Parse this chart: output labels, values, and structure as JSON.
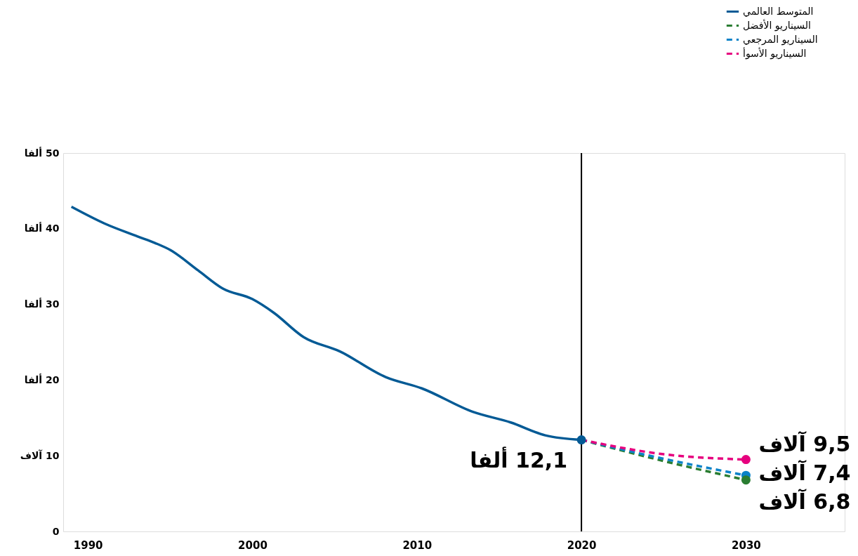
{
  "chart_data": {
    "type": "line",
    "x": [
      1989,
      1991,
      1993,
      1994.1,
      1995,
      1996.7,
      1998.2,
      2000,
      2001.3,
      2003.1,
      2005.3,
      2008.1,
      2010.3,
      2013.4,
      2015.7,
      2017.8,
      2020
    ],
    "series": [
      {
        "name": "المتوسط العالمي",
        "color": "#035a95",
        "line_style": "solid",
        "values": [
          42.9,
          40.7,
          39.0,
          38.1,
          37.2,
          34.5,
          32.1,
          30.7,
          28.9,
          25.7,
          23.8,
          20.4,
          18.9,
          15.8,
          14.4,
          12.7,
          12.1
        ]
      },
      {
        "name": "السيناريو الأفضل",
        "color": "#2a7d32",
        "line_style": "dashed",
        "x": [
          2020,
          2025,
          2030
        ],
        "values": [
          12.1,
          9.3,
          6.8
        ]
      },
      {
        "name": "السيناريو المرجعي",
        "color": "#0a82c8",
        "line_style": "dashed",
        "x": [
          2020,
          2025,
          2030
        ],
        "values": [
          12.1,
          9.6,
          7.4
        ]
      },
      {
        "name": "السيناريو الأسوأ",
        "color": "#e6007e",
        "line_style": "dashed",
        "x": [
          2020,
          2025,
          2030
        ],
        "values": [
          12.1,
          10.2,
          9.5
        ]
      },
      {
        "type": "scatter",
        "marker": "circle",
        "x": [
          2020,
          2030,
          2030,
          2030
        ],
        "values": [
          12.1,
          9.5,
          7.4,
          6.8
        ],
        "colors": [
          "#035a95",
          "#e6007e",
          "#0a82c8",
          "#2a7d32"
        ],
        "value_labels": [
          "12,1 ألفا",
          "9,5 آلاف",
          "7,4 آلاف",
          "6,8 آلاف"
        ]
      }
    ],
    "xlim": [
      1988.5,
      2036
    ],
    "xticks": [
      1990,
      2000,
      2010,
      2020,
      2030
    ],
    "ylim": [
      0,
      50
    ],
    "yticks": [
      0,
      {
        "value": 10,
        "label": "10 آلاف"
      },
      {
        "value": 20,
        "label": "20 ألفا"
      },
      {
        "value": 30,
        "label": "30 ألفا"
      },
      {
        "value": 40,
        "label": "40 ألفا"
      },
      {
        "value": 50,
        "label": "50 ألفا"
      }
    ],
    "ref_lines": [
      {
        "axis": "x",
        "value": 2020,
        "color": "#000000"
      }
    ],
    "grid": false,
    "legend": "top right"
  }
}
